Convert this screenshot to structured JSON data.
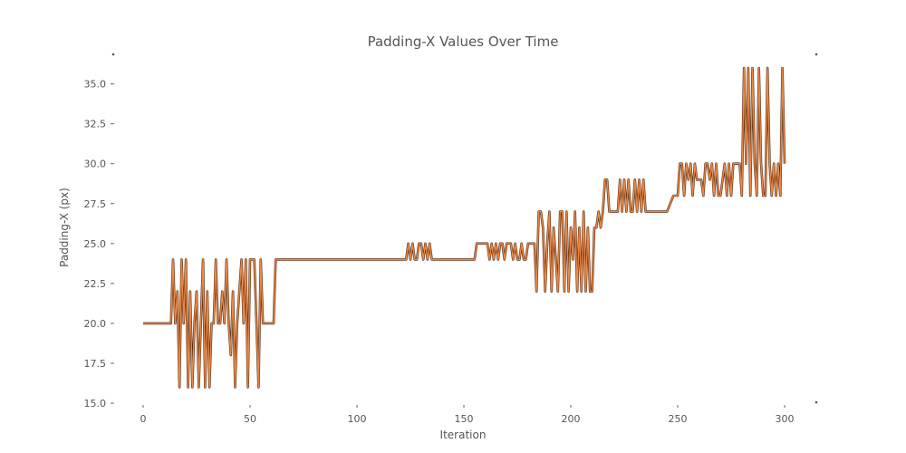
{
  "chart_data": {
    "type": "line",
    "title": "Padding-X Values Over Time",
    "xlabel": "Iteration",
    "ylabel": "Padding-X (px)",
    "xlim": [
      0,
      300
    ],
    "ylim": [
      15,
      36
    ],
    "x_ticks": [
      0,
      50,
      100,
      150,
      200,
      250,
      300
    ],
    "y_ticks": [
      15.0,
      17.5,
      20.0,
      22.5,
      25.0,
      27.5,
      30.0,
      32.5,
      35.0
    ],
    "x_tick_labels": [
      "0",
      "50",
      "100",
      "150",
      "200",
      "250",
      "300"
    ],
    "y_tick_labels": [
      "15.0",
      "17.5",
      "20.0",
      "22.5",
      "25.0",
      "27.5",
      "30.0",
      "32.5",
      "35.0"
    ],
    "grid": false,
    "colors": {
      "line": "#e8894a",
      "outline": "#5a2d10"
    },
    "series": [
      {
        "x": [
          0,
          5,
          10,
          13,
          14,
          15,
          16,
          17,
          18,
          19,
          20,
          21,
          22,
          23,
          24,
          25,
          26,
          27,
          28,
          29,
          30,
          31,
          32,
          33,
          34,
          35,
          36,
          37,
          38,
          39,
          40,
          41,
          42,
          43,
          44,
          45,
          46,
          47,
          48,
          49,
          50,
          51,
          52,
          53,
          54,
          55,
          56,
          57,
          58,
          59,
          60,
          61,
          62,
          63,
          64,
          65,
          70,
          80,
          90,
          100,
          110,
          120,
          123,
          124,
          125,
          126,
          127,
          128,
          129,
          130,
          131,
          132,
          133,
          134,
          135,
          136,
          137,
          138,
          140,
          145,
          150,
          155,
          156,
          157,
          160,
          161,
          162,
          163,
          164,
          165,
          166,
          167,
          168,
          169,
          170,
          171,
          172,
          173,
          174,
          175,
          176,
          177,
          178,
          179,
          180,
          181,
          182,
          183,
          184,
          185,
          186,
          187,
          188,
          189,
          190,
          191,
          192,
          193,
          194,
          195,
          196,
          197,
          198,
          199,
          200,
          201,
          202,
          203,
          204,
          205,
          206,
          207,
          208,
          209,
          210,
          211,
          212,
          213,
          214,
          215,
          216,
          217,
          218,
          219,
          220,
          221,
          222,
          223,
          224,
          225,
          226,
          227,
          228,
          229,
          230,
          231,
          232,
          233,
          234,
          235,
          236,
          237,
          240,
          245,
          248,
          250,
          251,
          252,
          253,
          254,
          255,
          256,
          257,
          258,
          259,
          260,
          261,
          262,
          263,
          264,
          265,
          266,
          267,
          268,
          269,
          270,
          271,
          272,
          273,
          274,
          275,
          276,
          277,
          278,
          279,
          280,
          281,
          282,
          283,
          284,
          285,
          286,
          287,
          288,
          289,
          290,
          291,
          292,
          293,
          294,
          295,
          296,
          297,
          298,
          299,
          300
        ],
        "y": [
          20,
          20,
          20,
          20,
          24,
          20,
          22,
          16,
          24,
          20,
          24,
          16,
          22,
          16,
          20,
          22,
          16,
          20,
          24,
          16,
          22,
          16,
          20,
          20,
          24,
          20,
          20,
          22,
          20,
          24,
          20,
          18,
          22,
          16,
          20,
          22,
          24,
          20,
          24,
          16,
          24,
          24,
          24,
          20,
          16,
          24,
          20,
          20,
          20,
          20,
          20,
          20,
          24,
          24,
          24,
          24,
          24,
          24,
          24,
          24,
          24,
          24,
          24,
          25,
          24,
          25,
          24,
          24,
          25,
          25,
          24,
          25,
          24,
          25,
          24,
          24,
          24,
          24,
          24,
          24,
          24,
          24,
          25,
          25,
          25,
          25,
          24,
          25,
          24,
          25,
          24,
          25,
          25,
          24,
          25,
          25,
          25,
          24,
          25,
          24,
          24,
          25,
          24,
          24,
          25,
          25,
          25,
          25,
          22,
          27,
          27,
          26,
          22,
          25,
          27,
          22,
          26,
          24,
          22,
          27,
          27,
          22,
          27,
          22,
          26,
          24,
          27,
          22,
          26,
          22,
          27,
          22,
          26,
          22,
          22,
          26,
          26,
          27,
          26,
          27,
          29,
          29,
          27,
          27,
          27,
          27,
          27,
          29,
          27,
          29,
          27,
          29,
          27,
          27,
          29,
          27,
          29,
          27,
          29,
          27,
          27,
          27,
          27,
          27,
          28,
          28,
          30,
          30,
          28,
          30,
          29,
          30,
          28,
          30,
          29,
          29,
          29,
          28,
          30,
          30,
          29,
          30,
          28,
          30,
          28,
          28,
          29,
          30,
          28,
          30,
          28,
          30,
          30,
          30,
          30,
          28,
          36,
          30,
          36,
          28,
          36,
          30,
          28,
          36,
          30,
          28,
          28,
          36,
          30,
          28,
          30,
          28,
          30,
          28,
          36,
          30
        ]
      }
    ]
  }
}
